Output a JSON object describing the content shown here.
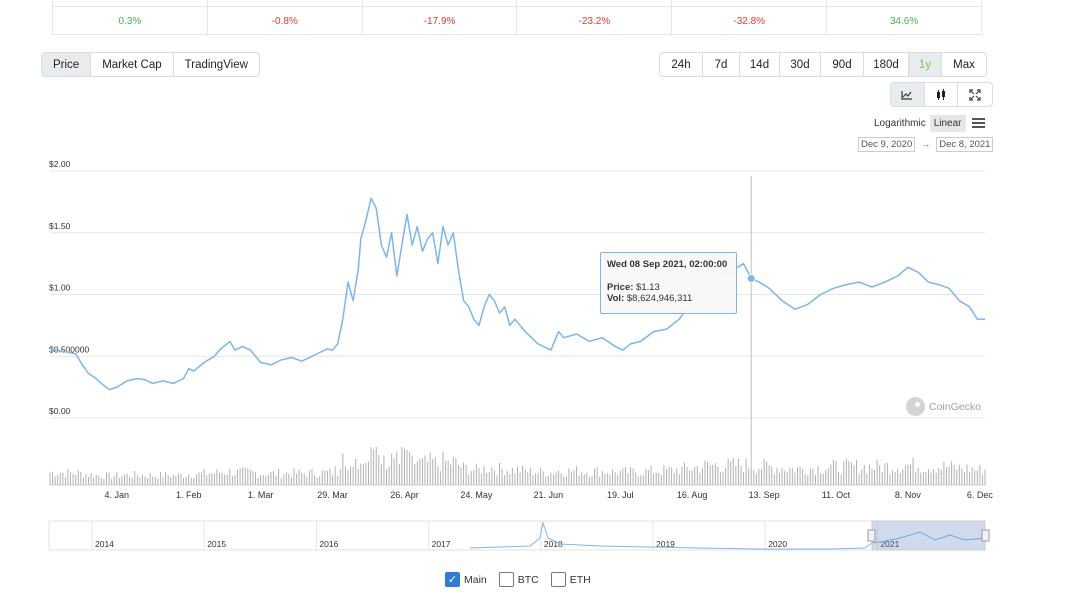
{
  "performance": {
    "changes": [
      {
        "value": "0.3%",
        "sign": "pos"
      },
      {
        "value": "-0.8%",
        "sign": "neg"
      },
      {
        "value": "-17.9%",
        "sign": "neg"
      },
      {
        "value": "-23.2%",
        "sign": "neg"
      },
      {
        "value": "-32.8%",
        "sign": "neg"
      },
      {
        "value": "34.6%",
        "sign": "pos"
      }
    ]
  },
  "type_tabs": [
    {
      "label": "Price",
      "active": true
    },
    {
      "label": "Market Cap",
      "active": false
    },
    {
      "label": "TradingView",
      "active": false
    }
  ],
  "range_tabs": [
    {
      "label": "24h",
      "active": false
    },
    {
      "label": "7d",
      "active": false
    },
    {
      "label": "14d",
      "active": false
    },
    {
      "label": "30d",
      "active": false
    },
    {
      "label": "90d",
      "active": false
    },
    {
      "label": "180d",
      "active": false
    },
    {
      "label": "1y",
      "active": true
    },
    {
      "label": "Max",
      "active": false
    }
  ],
  "view_tabs": [
    {
      "icon": "line-chart-icon",
      "active": true
    },
    {
      "icon": "candlestick-icon",
      "active": false
    },
    {
      "icon": "fullscreen-icon",
      "active": false
    }
  ],
  "scale": {
    "log_label": "Logarithmic",
    "linear_label": "Linear",
    "active": "Linear"
  },
  "date_range": {
    "from": "Dec 9, 2020",
    "arrow": "→",
    "to": "Dec 8, 2021"
  },
  "tooltip": {
    "title": "Wed 08 Sep 2021, 02:00:00",
    "price_label": "Price:",
    "price_value": "$1.13",
    "vol_label": "Vol:",
    "vol_value": "$8,624,946,311"
  },
  "watermark": "CoinGecko",
  "legend": [
    {
      "label": "Main",
      "checked": true
    },
    {
      "label": "BTC",
      "checked": false
    },
    {
      "label": "ETH",
      "checked": false
    }
  ],
  "colors": {
    "line": "#7cb5ec",
    "volume": "#b0b0b0",
    "positive": "#4caf50",
    "negative": "#e53935",
    "active_range": "#8bc34a"
  },
  "chart_data": {
    "type": "line",
    "ylim": [
      0,
      2.0
    ],
    "y_ticks": [
      "$0.00",
      "$0.500000",
      "$1.00",
      "$1.50",
      "$2.00"
    ],
    "y_tick_values": [
      0,
      0.5,
      1.0,
      1.5,
      2.0
    ],
    "x_ticks": [
      "4. Jan",
      "1. Feb",
      "1. Mar",
      "29. Mar",
      "26. Apr",
      "24. May",
      "21. Jun",
      "19. Jul",
      "16. Aug",
      "13. Sep",
      "11. Oct",
      "8. Nov",
      "6. Dec"
    ],
    "x_tick_days": [
      26,
      54,
      82,
      110,
      138,
      166,
      194,
      222,
      250,
      278,
      306,
      334,
      362
    ],
    "day_range": [
      0,
      364
    ],
    "hover_day": 273,
    "series": [
      {
        "days": [
          0,
          5,
          10,
          12,
          15,
          18,
          20,
          23,
          26,
          30,
          34,
          37,
          40,
          44,
          48,
          52,
          54,
          56,
          60,
          64,
          66,
          70,
          72,
          75,
          78,
          82,
          86,
          90,
          94,
          98,
          102,
          105,
          108,
          110,
          112,
          114,
          116,
          118,
          120,
          121,
          123,
          125,
          127,
          129,
          131,
          133,
          135,
          137,
          139,
          141,
          143,
          145,
          147,
          149,
          151,
          153,
          155,
          157,
          159,
          161,
          163,
          165,
          167,
          169,
          171,
          173,
          175,
          177,
          179,
          181,
          185,
          190,
          195,
          198,
          200,
          205,
          210,
          215,
          220,
          223,
          226,
          230,
          235,
          240,
          245,
          250,
          253,
          256,
          260,
          263,
          266,
          270,
          273,
          276,
          280,
          285,
          290,
          295,
          300,
          305,
          310,
          315,
          320,
          325,
          330,
          334,
          338,
          342,
          346,
          350,
          354,
          358,
          361,
          364
        ],
        "values": [
          0.56,
          0.54,
          0.52,
          0.45,
          0.36,
          0.32,
          0.28,
          0.23,
          0.25,
          0.3,
          0.32,
          0.31,
          0.28,
          0.3,
          0.28,
          0.32,
          0.4,
          0.38,
          0.45,
          0.5,
          0.55,
          0.62,
          0.55,
          0.58,
          0.55,
          0.45,
          0.43,
          0.47,
          0.49,
          0.46,
          0.5,
          0.53,
          0.56,
          0.55,
          0.6,
          0.8,
          1.1,
          0.95,
          1.2,
          1.45,
          1.6,
          1.78,
          1.7,
          1.4,
          1.3,
          1.5,
          1.15,
          1.4,
          1.65,
          1.4,
          1.55,
          1.35,
          1.45,
          1.5,
          1.25,
          1.55,
          1.4,
          1.5,
          1.2,
          0.95,
          0.9,
          0.8,
          0.75,
          0.9,
          1.0,
          0.95,
          0.85,
          0.9,
          0.75,
          0.8,
          0.7,
          0.6,
          0.55,
          0.7,
          0.65,
          0.68,
          0.62,
          0.65,
          0.58,
          0.55,
          0.6,
          0.62,
          0.7,
          0.72,
          0.8,
          0.95,
          1.05,
          1.15,
          1.25,
          1.15,
          1.2,
          1.25,
          1.13,
          1.1,
          1.05,
          0.95,
          0.88,
          0.92,
          1.0,
          1.05,
          1.08,
          1.1,
          1.06,
          1.1,
          1.15,
          1.22,
          1.18,
          1.1,
          1.08,
          1.05,
          0.95,
          0.9,
          0.8,
          0.8
        ]
      }
    ]
  },
  "navigator": {
    "year_labels": [
      "2014",
      "2015",
      "2016",
      "2017",
      "2018",
      "2019",
      "2020",
      "2021"
    ]
  }
}
